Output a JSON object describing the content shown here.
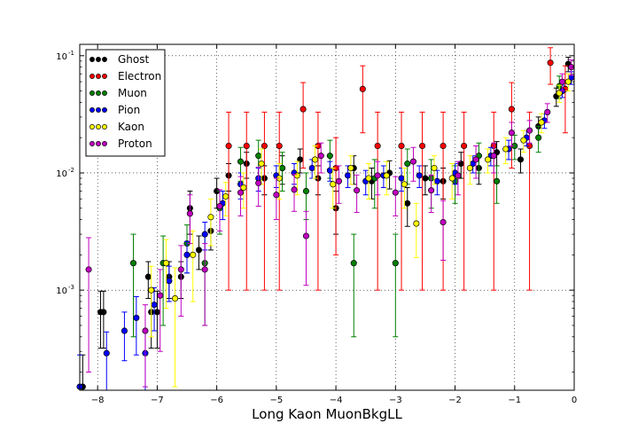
{
  "chart_data": {
    "type": "scatter",
    "title": "",
    "xlabel": "Long Kaon MuonBkgLL",
    "ylabel": "",
    "xlim": [
      -8.3,
      0
    ],
    "ylim": [
      0.00014,
      0.125
    ],
    "yscale": "log",
    "grid": true,
    "error_bars": true,
    "legend_position": "top-left",
    "x_ticks": [
      -8,
      -7,
      -6,
      -5,
      -4,
      -3,
      -2,
      -1,
      0
    ],
    "x_tick_labels": [
      "−8",
      "−7",
      "−6",
      "−5",
      "−4",
      "−3",
      "−2",
      "−1",
      "0"
    ],
    "y_ticks": [
      0.001,
      0.01,
      0.1
    ],
    "y_tick_labels": [
      "10",
      "10",
      "10"
    ],
    "y_tick_exponents": [
      "-3",
      "-2",
      "-1"
    ],
    "series": [
      {
        "name": "Ghost",
        "color": "#000000",
        "points": [
          {
            "x": -8.25,
            "y": 0.00015,
            "err": 0.00013
          },
          {
            "x": -7.95,
            "y": 0.00065,
            "err": 0.00033
          },
          {
            "x": -7.9,
            "y": 0.00065,
            "err": 0.00033
          },
          {
            "x": -7.15,
            "y": 0.0013,
            "err": 0.00045
          },
          {
            "x": -7.1,
            "y": 0.00065,
            "err": 0.00033
          },
          {
            "x": -7.0,
            "y": 0.00065,
            "err": 0.00033
          },
          {
            "x": -6.8,
            "y": 0.0013,
            "err": 0.00045
          },
          {
            "x": -6.6,
            "y": 0.0013,
            "err": 0.00045
          },
          {
            "x": -6.45,
            "y": 0.005,
            "err": 0.002
          },
          {
            "x": -6.3,
            "y": 0.0022,
            "err": 0.0007
          },
          {
            "x": -6.1,
            "y": 0.0032,
            "err": 0.001
          },
          {
            "x": -6.0,
            "y": 0.007,
            "err": 0.002
          },
          {
            "x": -5.8,
            "y": 0.0095,
            "err": 0.0025
          },
          {
            "x": -5.5,
            "y": 0.012,
            "err": 0.003
          },
          {
            "x": -5.2,
            "y": 0.009,
            "err": 0.0025
          },
          {
            "x": -4.9,
            "y": 0.011,
            "err": 0.003
          },
          {
            "x": -4.6,
            "y": 0.013,
            "err": 0.003
          },
          {
            "x": -4.3,
            "y": 0.009,
            "err": 0.0025
          },
          {
            "x": -4.0,
            "y": 0.005,
            "err": 0.002
          },
          {
            "x": -3.7,
            "y": 0.011,
            "err": 0.003
          },
          {
            "x": -3.4,
            "y": 0.0085,
            "err": 0.0025
          },
          {
            "x": -3.1,
            "y": 0.01,
            "err": 0.0027
          },
          {
            "x": -2.8,
            "y": 0.0055,
            "err": 0.002
          },
          {
            "x": -2.5,
            "y": 0.009,
            "err": 0.0025
          },
          {
            "x": -2.2,
            "y": 0.0085,
            "err": 0.0025
          },
          {
            "x": -1.9,
            "y": 0.012,
            "err": 0.003
          },
          {
            "x": -1.6,
            "y": 0.011,
            "err": 0.003
          },
          {
            "x": -1.3,
            "y": 0.015,
            "err": 0.0035
          },
          {
            "x": -0.9,
            "y": 0.013,
            "err": 0.003
          },
          {
            "x": -0.6,
            "y": 0.025,
            "err": 0.005
          },
          {
            "x": -0.3,
            "y": 0.045,
            "err": 0.008
          },
          {
            "x": -0.1,
            "y": 0.085,
            "err": 0.012
          }
        ]
      },
      {
        "name": "Electron",
        "color": "#ff0000",
        "points": [
          {
            "x": -5.8,
            "y": 0.017,
            "err": 0.016
          },
          {
            "x": -5.5,
            "y": 0.017,
            "err": 0.016
          },
          {
            "x": -5.2,
            "y": 0.017,
            "err": 0.016
          },
          {
            "x": -4.95,
            "y": 0.017,
            "err": 0.016
          },
          {
            "x": -4.55,
            "y": 0.035,
            "err": 0.024
          },
          {
            "x": -4.3,
            "y": 0.017,
            "err": 0.016
          },
          {
            "x": -4.0,
            "y": 0.011,
            "err": 0.009
          },
          {
            "x": -3.55,
            "y": 0.052,
            "err": 0.03
          },
          {
            "x": -3.3,
            "y": 0.017,
            "err": 0.016
          },
          {
            "x": -2.9,
            "y": 0.017,
            "err": 0.016
          },
          {
            "x": -2.55,
            "y": 0.017,
            "err": 0.016
          },
          {
            "x": -2.2,
            "y": 0.017,
            "err": 0.016
          },
          {
            "x": -1.85,
            "y": 0.017,
            "err": 0.016
          },
          {
            "x": -1.35,
            "y": 0.017,
            "err": 0.016
          },
          {
            "x": -1.05,
            "y": 0.035,
            "err": 0.024
          },
          {
            "x": -0.75,
            "y": 0.017,
            "err": 0.016
          },
          {
            "x": -0.4,
            "y": 0.087,
            "err": 0.03
          },
          {
            "x": -0.15,
            "y": 0.052,
            "err": 0.03
          }
        ]
      },
      {
        "name": "Muon",
        "color": "#008000",
        "points": [
          {
            "x": -7.4,
            "y": 0.0017,
            "err": 0.0013
          },
          {
            "x": -6.9,
            "y": 0.0017,
            "err": 0.0012
          },
          {
            "x": -6.5,
            "y": 0.0025,
            "err": 0.0011
          },
          {
            "x": -6.2,
            "y": 0.0017,
            "err": 0.0012
          },
          {
            "x": -5.95,
            "y": 0.005,
            "err": 0.002
          },
          {
            "x": -5.6,
            "y": 0.0125,
            "err": 0.004
          },
          {
            "x": -5.3,
            "y": 0.014,
            "err": 0.005
          },
          {
            "x": -4.9,
            "y": 0.011,
            "err": 0.004
          },
          {
            "x": -4.5,
            "y": 0.007,
            "err": 0.003
          },
          {
            "x": -4.1,
            "y": 0.014,
            "err": 0.005
          },
          {
            "x": -3.7,
            "y": 0.0017,
            "err": 0.0013
          },
          {
            "x": -3.35,
            "y": 0.009,
            "err": 0.004
          },
          {
            "x": -3.0,
            "y": 0.0017,
            "err": 0.0013
          },
          {
            "x": -2.8,
            "y": 0.012,
            "err": 0.004
          },
          {
            "x": -2.4,
            "y": 0.009,
            "err": 0.004
          },
          {
            "x": -2.0,
            "y": 0.0085,
            "err": 0.003
          },
          {
            "x": -1.6,
            "y": 0.014,
            "err": 0.004
          },
          {
            "x": -1.3,
            "y": 0.0085,
            "err": 0.003
          },
          {
            "x": -1.0,
            "y": 0.017,
            "err": 0.004
          },
          {
            "x": -0.6,
            "y": 0.02,
            "err": 0.005
          },
          {
            "x": -0.25,
            "y": 0.055,
            "err": 0.012
          }
        ]
      },
      {
        "name": "Pion",
        "color": "#0000ff",
        "points": [
          {
            "x": -8.3,
            "y": 0.00015,
            "err": 0.00013
          },
          {
            "x": -7.85,
            "y": 0.00029,
            "err": 0.00015
          },
          {
            "x": -7.55,
            "y": 0.00045,
            "err": 0.0002
          },
          {
            "x": -7.35,
            "y": 0.00058,
            "err": 0.0003
          },
          {
            "x": -7.2,
            "y": 0.00029,
            "err": 0.00015
          },
          {
            "x": -7.05,
            "y": 0.00075,
            "err": 0.0003
          },
          {
            "x": -6.8,
            "y": 0.0012,
            "err": 0.0004
          },
          {
            "x": -6.5,
            "y": 0.002,
            "err": 0.0006
          },
          {
            "x": -6.2,
            "y": 0.003,
            "err": 0.0008
          },
          {
            "x": -5.9,
            "y": 0.0055,
            "err": 0.0015
          },
          {
            "x": -5.6,
            "y": 0.008,
            "err": 0.002
          },
          {
            "x": -5.3,
            "y": 0.009,
            "err": 0.002
          },
          {
            "x": -5.0,
            "y": 0.0095,
            "err": 0.002
          },
          {
            "x": -4.7,
            "y": 0.01,
            "err": 0.002
          },
          {
            "x": -4.4,
            "y": 0.011,
            "err": 0.002
          },
          {
            "x": -4.1,
            "y": 0.0105,
            "err": 0.002
          },
          {
            "x": -3.8,
            "y": 0.0095,
            "err": 0.002
          },
          {
            "x": -3.5,
            "y": 0.0085,
            "err": 0.002
          },
          {
            "x": -3.2,
            "y": 0.0095,
            "err": 0.002
          },
          {
            "x": -2.9,
            "y": 0.009,
            "err": 0.002
          },
          {
            "x": -2.6,
            "y": 0.0095,
            "err": 0.002
          },
          {
            "x": -2.3,
            "y": 0.0085,
            "err": 0.002
          },
          {
            "x": -2.0,
            "y": 0.01,
            "err": 0.002
          },
          {
            "x": -1.7,
            "y": 0.012,
            "err": 0.002
          },
          {
            "x": -1.4,
            "y": 0.014,
            "err": 0.0025
          },
          {
            "x": -1.1,
            "y": 0.016,
            "err": 0.003
          },
          {
            "x": -0.8,
            "y": 0.02,
            "err": 0.003
          },
          {
            "x": -0.5,
            "y": 0.028,
            "err": 0.004
          },
          {
            "x": -0.2,
            "y": 0.05,
            "err": 0.006
          },
          {
            "x": -0.05,
            "y": 0.065,
            "err": 0.008
          }
        ]
      },
      {
        "name": "Kaon",
        "color": "#ffff00",
        "points": [
          {
            "x": -7.1,
            "y": 0.001,
            "err": 0.0006
          },
          {
            "x": -6.85,
            "y": 0.0017,
            "err": 0.001
          },
          {
            "x": -6.7,
            "y": 0.00085,
            "err": 0.0007
          },
          {
            "x": -6.4,
            "y": 0.002,
            "err": 0.0012
          },
          {
            "x": -6.1,
            "y": 0.0042,
            "err": 0.0018
          },
          {
            "x": -5.85,
            "y": 0.0063,
            "err": 0.002
          },
          {
            "x": -5.55,
            "y": 0.0075,
            "err": 0.0025
          },
          {
            "x": -5.25,
            "y": 0.012,
            "err": 0.004
          },
          {
            "x": -4.95,
            "y": 0.009,
            "err": 0.003
          },
          {
            "x": -4.65,
            "y": 0.0095,
            "err": 0.003
          },
          {
            "x": -4.35,
            "y": 0.013,
            "err": 0.004
          },
          {
            "x": -4.05,
            "y": 0.008,
            "err": 0.003
          },
          {
            "x": -3.75,
            "y": 0.011,
            "err": 0.003
          },
          {
            "x": -3.45,
            "y": 0.009,
            "err": 0.003
          },
          {
            "x": -3.15,
            "y": 0.0095,
            "err": 0.003
          },
          {
            "x": -2.85,
            "y": 0.008,
            "err": 0.003
          },
          {
            "x": -2.65,
            "y": 0.0037,
            "err": 0.0018
          },
          {
            "x": -2.35,
            "y": 0.011,
            "err": 0.003
          },
          {
            "x": -2.05,
            "y": 0.009,
            "err": 0.003
          },
          {
            "x": -1.75,
            "y": 0.011,
            "err": 0.003
          },
          {
            "x": -1.45,
            "y": 0.013,
            "err": 0.003
          },
          {
            "x": -1.15,
            "y": 0.016,
            "err": 0.004
          },
          {
            "x": -0.85,
            "y": 0.019,
            "err": 0.004
          },
          {
            "x": -0.55,
            "y": 0.027,
            "err": 0.005
          },
          {
            "x": -0.25,
            "y": 0.048,
            "err": 0.008
          },
          {
            "x": -0.1,
            "y": 0.06,
            "err": 0.01
          }
        ]
      },
      {
        "name": "Proton",
        "color": "#c000c0",
        "points": [
          {
            "x": -8.15,
            "y": 0.0015,
            "err": 0.0013
          },
          {
            "x": -7.2,
            "y": 0.00045,
            "err": 0.0003
          },
          {
            "x": -6.95,
            "y": 0.0009,
            "err": 0.0006
          },
          {
            "x": -6.6,
            "y": 0.0015,
            "err": 0.0009
          },
          {
            "x": -6.45,
            "y": 0.0045,
            "err": 0.002
          },
          {
            "x": -6.2,
            "y": 0.0015,
            "err": 0.001
          },
          {
            "x": -5.95,
            "y": 0.0052,
            "err": 0.002
          },
          {
            "x": -5.6,
            "y": 0.0068,
            "err": 0.0025
          },
          {
            "x": -5.3,
            "y": 0.0082,
            "err": 0.003
          },
          {
            "x": -5.0,
            "y": 0.0065,
            "err": 0.0025
          },
          {
            "x": -4.7,
            "y": 0.0072,
            "err": 0.0025
          },
          {
            "x": -4.5,
            "y": 0.0029,
            "err": 0.0018
          },
          {
            "x": -4.25,
            "y": 0.014,
            "err": 0.004
          },
          {
            "x": -3.95,
            "y": 0.0085,
            "err": 0.003
          },
          {
            "x": -3.65,
            "y": 0.0071,
            "err": 0.0025
          },
          {
            "x": -3.3,
            "y": 0.0095,
            "err": 0.003
          },
          {
            "x": -3.0,
            "y": 0.0068,
            "err": 0.0025
          },
          {
            "x": -2.7,
            "y": 0.0125,
            "err": 0.004
          },
          {
            "x": -2.4,
            "y": 0.0071,
            "err": 0.0025
          },
          {
            "x": -2.2,
            "y": 0.0038,
            "err": 0.002
          },
          {
            "x": -1.95,
            "y": 0.0095,
            "err": 0.003
          },
          {
            "x": -1.65,
            "y": 0.013,
            "err": 0.004
          },
          {
            "x": -1.35,
            "y": 0.014,
            "err": 0.004
          },
          {
            "x": -1.05,
            "y": 0.022,
            "err": 0.005
          },
          {
            "x": -0.75,
            "y": 0.023,
            "err": 0.005
          },
          {
            "x": -0.45,
            "y": 0.033,
            "err": 0.006
          },
          {
            "x": -0.2,
            "y": 0.06,
            "err": 0.01
          },
          {
            "x": -0.05,
            "y": 0.08,
            "err": 0.012
          }
        ]
      }
    ]
  }
}
